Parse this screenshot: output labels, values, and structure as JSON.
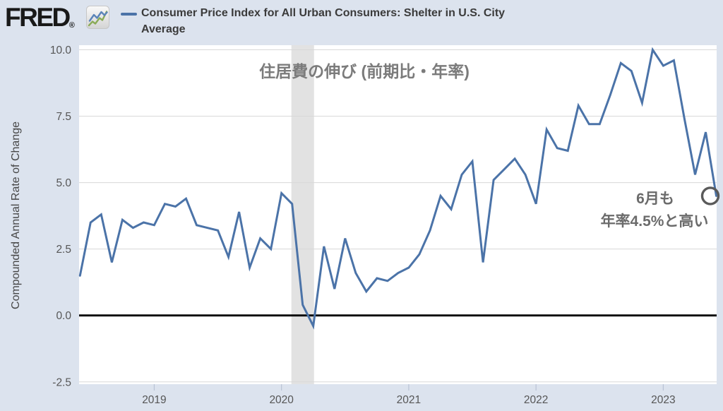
{
  "header": {
    "logo_text": "FRED",
    "logo_registered": "®",
    "legend": {
      "series_label": "Consumer Price Index for All Urban Consumers: Shelter in U.S. City Average",
      "series_label_line1": "Consumer Price Index for All Urban Consumers: Shelter in U.S. City",
      "series_label_line2": "Average",
      "swatch_color": "#4b73a8"
    }
  },
  "chart_data": {
    "type": "line",
    "title_annotation": "住居費の伸び (前期比・年率)",
    "ylabel": "Compounded Annual Rate of Change",
    "ylim": [
      -2.6,
      10.2
    ],
    "grid": true,
    "zero_line": true,
    "months": [
      "2018-06",
      "2018-07",
      "2018-08",
      "2018-09",
      "2018-10",
      "2018-11",
      "2018-12",
      "2019-01",
      "2019-02",
      "2019-03",
      "2019-04",
      "2019-05",
      "2019-06",
      "2019-07",
      "2019-08",
      "2019-09",
      "2019-10",
      "2019-11",
      "2019-12",
      "2020-01",
      "2020-02",
      "2020-03",
      "2020-04",
      "2020-05",
      "2020-06",
      "2020-07",
      "2020-08",
      "2020-09",
      "2020-10",
      "2020-11",
      "2020-12",
      "2021-01",
      "2021-02",
      "2021-03",
      "2021-04",
      "2021-05",
      "2021-06",
      "2021-07",
      "2021-08",
      "2021-09",
      "2021-10",
      "2021-11",
      "2021-12",
      "2022-01",
      "2022-02",
      "2022-03",
      "2022-04",
      "2022-05",
      "2022-06",
      "2022-07",
      "2022-08",
      "2022-09",
      "2022-10",
      "2022-11",
      "2022-12",
      "2023-01",
      "2023-02",
      "2023-03",
      "2023-04",
      "2023-05",
      "2023-06"
    ],
    "series": [
      {
        "name": "Consumer Price Index for All Urban Consumers: Shelter in U.S. City Average",
        "color": "#4b73a8",
        "values": [
          1.5,
          3.5,
          3.8,
          2.0,
          3.6,
          3.3,
          3.5,
          3.4,
          4.2,
          4.1,
          4.4,
          3.4,
          3.3,
          3.2,
          2.2,
          3.9,
          1.8,
          2.9,
          2.5,
          4.6,
          4.2,
          0.4,
          -0.4,
          2.6,
          1.0,
          2.9,
          1.6,
          0.9,
          1.4,
          1.3,
          1.6,
          1.8,
          2.3,
          3.2,
          4.5,
          4.0,
          5.3,
          5.8,
          2.0,
          5.1,
          5.5,
          5.9,
          5.3,
          4.2,
          7.0,
          6.3,
          6.2,
          7.9,
          7.2,
          7.2,
          8.3,
          9.5,
          9.2,
          8.0,
          10.0,
          9.4,
          9.6,
          7.4,
          5.3,
          6.9,
          4.5
        ]
      }
    ],
    "yticks": [
      10.0,
      7.5,
      5.0,
      2.5,
      0.0,
      -2.5
    ],
    "ytick_labels": [
      "10.0",
      "7.5",
      "5.0",
      "2.5",
      "0.0",
      "-2.5"
    ],
    "xticks": [
      {
        "label": "2019",
        "month": "2019-01"
      },
      {
        "label": "2020",
        "month": "2020-01"
      },
      {
        "label": "2021",
        "month": "2021-01"
      },
      {
        "label": "2022",
        "month": "2022-01"
      },
      {
        "label": "2023",
        "month": "2023-01"
      }
    ],
    "recession_band": {
      "start": "2020-02",
      "end": "2020-04",
      "color": "#e2e2e2"
    },
    "annotations": {
      "note_line1": "6月も",
      "note_line2": "年率4.5%と高い",
      "highlight_month": "2023-06",
      "highlight_value": 4.5
    },
    "colors": {
      "page_bg": "#dce3ee",
      "plot_bg": "#ffffff",
      "gridline": "#d8d8d8",
      "zero_line": "#000000",
      "tick_mark": "#b9c3d5",
      "tick_text": "#565656",
      "axis_title_text": "#474747",
      "annotation_text": "#6b6b6b",
      "title_text": "#7b7b7b",
      "highlight_circle": "#5a5a5a"
    }
  }
}
